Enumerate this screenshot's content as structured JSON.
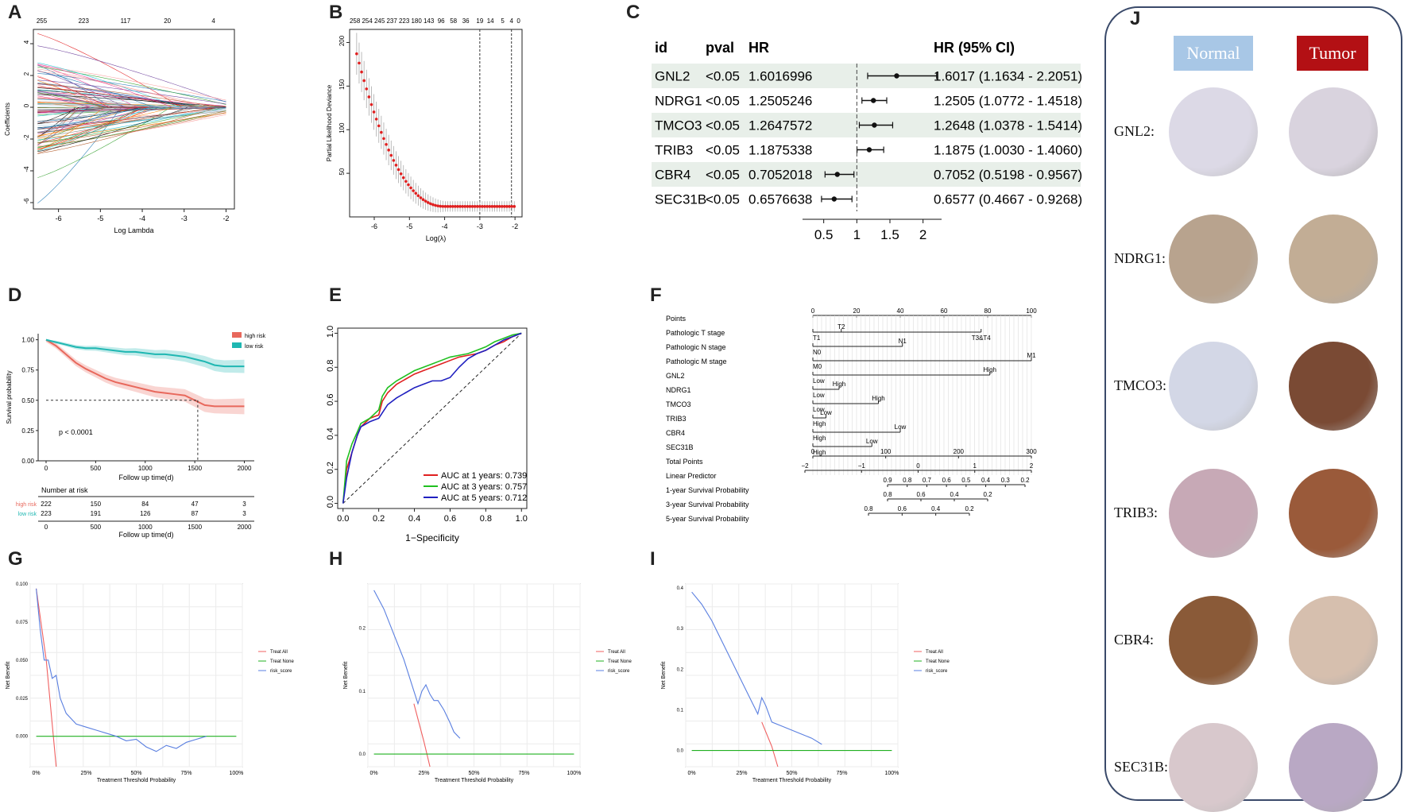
{
  "panels": {
    "A": "A",
    "B": "B",
    "C": "C",
    "D": "D",
    "E": "E",
    "F": "F",
    "G": "G",
    "H": "H",
    "I": "I",
    "J": "J"
  },
  "chart_data": [
    {
      "id": "A",
      "type": "line",
      "title": "",
      "xlabel": "Log Lambda",
      "ylabel": "Coefficients",
      "xticks": [
        "-6",
        "-5",
        "-4",
        "-3",
        "-2"
      ],
      "yticks": [
        "-6",
        "-4",
        "-2",
        "0",
        "2",
        "4"
      ],
      "top_ticks": [
        "255",
        "223",
        "117",
        "20",
        "4"
      ],
      "xlim": [
        -6.6,
        -1.8
      ],
      "ylim": [
        -6.4,
        4.9
      ]
    },
    {
      "id": "B",
      "type": "scatter",
      "title": "",
      "xlabel": "Log(λ)",
      "ylabel": "Partial Likelihood Deviance",
      "xticks": [
        "-6",
        "-5",
        "-4",
        "-3",
        "-2"
      ],
      "yticks": [
        "50",
        "100",
        "150",
        "200"
      ],
      "top_ticks": [
        "258",
        "254",
        "245",
        "237",
        "223",
        "180",
        "143",
        "96",
        "58",
        "36",
        "19",
        "14",
        "5",
        "4",
        "0"
      ],
      "xlim": [
        -6.7,
        -1.8
      ],
      "ylim": [
        0,
        215
      ],
      "vlines": [
        -3.0,
        -2.1
      ]
    },
    {
      "id": "C",
      "type": "table",
      "title": "",
      "columns": [
        "id",
        "pval",
        "HR",
        "HR (95% CI)"
      ],
      "rows": [
        {
          "id": "GNL2",
          "pval": "<0.05",
          "hr": "1.6016996",
          "ci": "1.6017 (1.1634 - 2.2051)",
          "est": 1.6017,
          "lo": 1.1634,
          "hi": 2.2051
        },
        {
          "id": "NDRG1",
          "pval": "<0.05",
          "hr": "1.2505246",
          "ci": "1.2505 (1.0772 - 1.4518)",
          "est": 1.2505,
          "lo": 1.0772,
          "hi": 1.4518
        },
        {
          "id": "TMCO3",
          "pval": "<0.05",
          "hr": "1.2647572",
          "ci": "1.2648 (1.0378 - 1.5414)",
          "est": 1.2648,
          "lo": 1.0378,
          "hi": 1.5414
        },
        {
          "id": "TRIB3",
          "pval": "<0.05",
          "hr": "1.1875338",
          "ci": "1.1875 (1.0030 - 1.4060)",
          "est": 1.1875,
          "lo": 1.003,
          "hi": 1.406
        },
        {
          "id": "CBR4",
          "pval": "<0.05",
          "hr": "0.7052018",
          "ci": "0.7052 (0.5198 - 0.9567)",
          "est": 0.7052,
          "lo": 0.5198,
          "hi": 0.9567
        },
        {
          "id": "SEC31B",
          "pval": "<0.05",
          "hr": "0.6576638",
          "ci": "0.6577 (0.4667 - 0.9268)",
          "est": 0.6577,
          "lo": 0.4667,
          "hi": 0.9268
        }
      ],
      "xticks": [
        "0.5",
        "1",
        "1.5",
        "2"
      ],
      "xlim": [
        0.3,
        2.1
      ]
    },
    {
      "id": "D",
      "type": "line",
      "title": "",
      "xlabel": "Follow up time(d)",
      "ylabel": "Survival probability",
      "xticks": [
        "0",
        "500",
        "1000",
        "1500",
        "2000"
      ],
      "yticks": [
        "0.00",
        "0.25",
        "0.50",
        "0.75",
        "1.00"
      ],
      "xlim": [
        -80,
        2100
      ],
      "ylim": [
        0,
        1.05
      ],
      "pvalue": "p < 0.0001",
      "legend": [
        "high risk",
        "low risk"
      ],
      "series": [
        {
          "name": "high risk",
          "color": "#e8685c",
          "x": [
            0,
            100,
            200,
            300,
            400,
            500,
            600,
            700,
            800,
            900,
            1000,
            1100,
            1200,
            1300,
            1400,
            1500,
            1600,
            1700,
            1800,
            1900,
            2000
          ],
          "y": [
            1.0,
            0.95,
            0.88,
            0.81,
            0.76,
            0.72,
            0.68,
            0.65,
            0.63,
            0.61,
            0.59,
            0.57,
            0.56,
            0.55,
            0.54,
            0.5,
            0.46,
            0.45,
            0.45,
            0.45,
            0.45
          ]
        },
        {
          "name": "low risk",
          "color": "#1fb7b2",
          "x": [
            0,
            100,
            200,
            300,
            400,
            500,
            600,
            700,
            800,
            900,
            1000,
            1100,
            1200,
            1300,
            1400,
            1500,
            1600,
            1700,
            1800,
            1900,
            2000
          ],
          "y": [
            1.0,
            0.98,
            0.96,
            0.94,
            0.93,
            0.93,
            0.92,
            0.91,
            0.9,
            0.9,
            0.89,
            0.88,
            0.88,
            0.87,
            0.86,
            0.84,
            0.82,
            0.79,
            0.78,
            0.78,
            0.78
          ]
        }
      ],
      "risk_table": {
        "title": "Number at risk",
        "rows": [
          {
            "name": "high risk",
            "color": "#e8685c",
            "values": [
              "222",
              "150",
              "84",
              "47",
              "3"
            ]
          },
          {
            "name": "low risk",
            "color": "#1fb7b2",
            "values": [
              "223",
              "191",
              "126",
              "87",
              "3"
            ]
          }
        ],
        "xticks": [
          "0",
          "500",
          "1000",
          "1500",
          "2000"
        ],
        "xlabel": "Follow up time(d)"
      }
    },
    {
      "id": "E",
      "type": "line",
      "title": "",
      "xlabel": "1−Specificity",
      "ylabel": "Sensitivity",
      "xticks": [
        "0.0",
        "0.2",
        "0.4",
        "0.6",
        "0.8",
        "1.0"
      ],
      "yticks": [
        "0.0",
        "0.2",
        "0.4",
        "0.6",
        "0.8",
        "1.0"
      ],
      "xlim": [
        -0.03,
        1.03
      ],
      "ylim": [
        -0.03,
        1.03
      ],
      "legend": [
        "AUC at 1 years: 0.739",
        "AUC at 3 years: 0.757",
        "AUC at 5 years: 0.712"
      ],
      "series": [
        {
          "name": "AUC at 1 years: 0.739",
          "color": "#e02020",
          "x": [
            0,
            0.02,
            0.05,
            0.08,
            0.1,
            0.15,
            0.2,
            0.22,
            0.25,
            0.3,
            0.35,
            0.4,
            0.45,
            0.5,
            0.55,
            0.6,
            0.65,
            0.7,
            0.75,
            0.8,
            0.85,
            0.9,
            0.95,
            1.0
          ],
          "y": [
            0,
            0.2,
            0.3,
            0.4,
            0.45,
            0.5,
            0.52,
            0.6,
            0.65,
            0.7,
            0.73,
            0.76,
            0.78,
            0.8,
            0.82,
            0.84,
            0.86,
            0.87,
            0.88,
            0.9,
            0.93,
            0.95,
            0.98,
            1.0
          ]
        },
        {
          "name": "AUC at 3 years: 0.757",
          "color": "#20c020",
          "x": [
            0,
            0.02,
            0.05,
            0.08,
            0.1,
            0.15,
            0.2,
            0.22,
            0.25,
            0.3,
            0.35,
            0.4,
            0.45,
            0.5,
            0.55,
            0.6,
            0.65,
            0.7,
            0.75,
            0.8,
            0.85,
            0.9,
            0.95,
            1.0
          ],
          "y": [
            0,
            0.25,
            0.35,
            0.42,
            0.47,
            0.5,
            0.55,
            0.63,
            0.68,
            0.72,
            0.75,
            0.78,
            0.8,
            0.82,
            0.84,
            0.86,
            0.87,
            0.88,
            0.9,
            0.92,
            0.95,
            0.97,
            0.99,
            1.0
          ]
        },
        {
          "name": "AUC at 5 years: 0.712",
          "color": "#2020c0",
          "x": [
            0,
            0.02,
            0.05,
            0.08,
            0.1,
            0.15,
            0.2,
            0.25,
            0.3,
            0.35,
            0.4,
            0.45,
            0.5,
            0.55,
            0.6,
            0.65,
            0.7,
            0.75,
            0.8,
            0.85,
            0.9,
            0.95,
            1.0
          ],
          "y": [
            0,
            0.15,
            0.3,
            0.4,
            0.45,
            0.48,
            0.5,
            0.58,
            0.62,
            0.65,
            0.68,
            0.7,
            0.72,
            0.72,
            0.74,
            0.8,
            0.85,
            0.88,
            0.9,
            0.93,
            0.96,
            0.98,
            1.0
          ]
        }
      ]
    },
    {
      "id": "F",
      "type": "table",
      "title": "Nomogram",
      "rows": [
        {
          "label": "Points",
          "kind": "axis",
          "ticks": [
            "0",
            "20",
            "40",
            "60",
            "80",
            "100"
          ]
        },
        {
          "label": "Pathologic T stage",
          "kind": "var",
          "marks": [
            "T1",
            "T2",
            "T3&T4"
          ]
        },
        {
          "label": "Pathologic N stage",
          "kind": "var",
          "marks": [
            "N0",
            "N1"
          ]
        },
        {
          "label": "Pathologic M stage",
          "kind": "var",
          "marks": [
            "M0",
            "M1"
          ]
        },
        {
          "label": "GNL2",
          "kind": "var",
          "marks": [
            "Low",
            "High"
          ]
        },
        {
          "label": "NDRG1",
          "kind": "var",
          "marks": [
            "Low",
            "High"
          ]
        },
        {
          "label": "TMCO3",
          "kind": "var",
          "marks": [
            "Low",
            "High"
          ]
        },
        {
          "label": "TRIB3",
          "kind": "var",
          "marks": [
            "High",
            "Low"
          ]
        },
        {
          "label": "CBR4",
          "kind": "var",
          "marks": [
            "High",
            "Low"
          ]
        },
        {
          "label": "SEC31B",
          "kind": "var",
          "marks": [
            "High",
            "Low"
          ]
        },
        {
          "label": "Total Points",
          "kind": "axis",
          "ticks": [
            "0",
            "100",
            "200",
            "300"
          ]
        },
        {
          "label": "Linear Predictor",
          "kind": "axis",
          "ticks": [
            "−2",
            "−1",
            "0",
            "1",
            "2"
          ]
        },
        {
          "label": "1-year Survival Probability",
          "kind": "axis",
          "ticks": [
            "0.9",
            "0.8",
            "0.7",
            "0.6",
            "0.5",
            "0.4",
            "0.3",
            "0.2"
          ]
        },
        {
          "label": "3-year Survival Probability",
          "kind": "axis",
          "ticks": [
            "0.8",
            "0.6",
            "0.4",
            "0.2"
          ]
        },
        {
          "label": "5-year Survival Probability",
          "kind": "axis",
          "ticks": [
            "0.8",
            "0.6",
            "0.4",
            "0.2"
          ]
        }
      ]
    },
    {
      "id": "G",
      "type": "line",
      "title": "",
      "xlabel": "Treatment Threshold Probability",
      "ylabel": "Net Benefit",
      "xticks": [
        "0%",
        "25%",
        "50%",
        "75%",
        "100%"
      ],
      "yticks": [
        "0.000",
        "0.025",
        "0.050",
        "0.075",
        "0.100"
      ],
      "xlim": [
        -0.03,
        1.03
      ],
      "ylim": [
        -0.02,
        0.1
      ],
      "legend": [
        "Treat All",
        "Treat None",
        "risk_score"
      ],
      "series": [
        {
          "name": "Treat All",
          "color": "#f06060",
          "x": [
            0,
            0.05,
            0.1
          ],
          "y": [
            0.097,
            0.05,
            -0.02
          ]
        },
        {
          "name": "Treat None",
          "color": "#20b020",
          "x": [
            0,
            1
          ],
          "y": [
            0,
            0
          ]
        },
        {
          "name": "risk_score",
          "color": "#5a7fe0",
          "x": [
            0,
            0.02,
            0.04,
            0.06,
            0.08,
            0.1,
            0.12,
            0.15,
            0.2,
            0.25,
            0.3,
            0.35,
            0.4,
            0.45,
            0.5,
            0.55,
            0.6,
            0.65,
            0.7,
            0.75,
            0.8,
            0.85
          ],
          "y": [
            0.097,
            0.07,
            0.05,
            0.05,
            0.038,
            0.04,
            0.025,
            0.015,
            0.008,
            0.006,
            0.004,
            0.002,
            0,
            -0.003,
            -0.002,
            -0.007,
            -0.01,
            -0.006,
            -0.008,
            -0.004,
            -0.002,
            0
          ]
        }
      ]
    },
    {
      "id": "H",
      "type": "line",
      "title": "",
      "xlabel": "Treatment Threshold Probability",
      "ylabel": "Net Benefit",
      "xticks": [
        "0%",
        "25%",
        "50%",
        "75%",
        "100%"
      ],
      "yticks": [
        "0.0",
        "0.1",
        "0.2"
      ],
      "xlim": [
        -0.03,
        1.03
      ],
      "ylim": [
        -0.02,
        0.27
      ],
      "legend": [
        "Treat All",
        "Treat None",
        "risk_score"
      ],
      "series": [
        {
          "name": "Treat All",
          "color": "#f06060",
          "x": [
            0.2,
            0.25,
            0.28
          ],
          "y": [
            0.08,
            0.02,
            -0.02
          ]
        },
        {
          "name": "Treat None",
          "color": "#20b020",
          "x": [
            0,
            1
          ],
          "y": [
            0,
            0
          ]
        },
        {
          "name": "risk_score",
          "color": "#5a7fe0",
          "x": [
            0,
            0.05,
            0.1,
            0.15,
            0.2,
            0.22,
            0.24,
            0.26,
            0.28,
            0.3,
            0.32,
            0.35,
            0.38,
            0.4,
            0.43
          ],
          "y": [
            0.26,
            0.23,
            0.19,
            0.15,
            0.1,
            0.08,
            0.1,
            0.11,
            0.095,
            0.085,
            0.085,
            0.07,
            0.05,
            0.035,
            0.025
          ]
        }
      ]
    },
    {
      "id": "I",
      "type": "line",
      "title": "",
      "xlabel": "Treatment Threshold Probability",
      "ylabel": "Net Benefit",
      "xticks": [
        "0%",
        "25%",
        "50%",
        "75%",
        "100%"
      ],
      "yticks": [
        "0.0",
        "0.1",
        "0.2",
        "0.3",
        "0.4"
      ],
      "xlim": [
        -0.03,
        1.03
      ],
      "ylim": [
        -0.04,
        0.41
      ],
      "legend": [
        "Treat All",
        "Treat None",
        "risk_score"
      ],
      "series": [
        {
          "name": "Treat All",
          "color": "#f06060",
          "x": [
            0.35,
            0.4,
            0.43
          ],
          "y": [
            0.07,
            0.01,
            -0.04
          ]
        },
        {
          "name": "Treat None",
          "color": "#20b020",
          "x": [
            0,
            1
          ],
          "y": [
            0,
            0
          ]
        },
        {
          "name": "risk_score",
          "color": "#5a7fe0",
          "x": [
            0,
            0.05,
            0.1,
            0.15,
            0.2,
            0.25,
            0.3,
            0.33,
            0.35,
            0.37,
            0.4,
            0.45,
            0.5,
            0.55,
            0.6,
            0.65
          ],
          "y": [
            0.39,
            0.36,
            0.32,
            0.27,
            0.22,
            0.17,
            0.12,
            0.09,
            0.13,
            0.11,
            0.07,
            0.06,
            0.05,
            0.04,
            0.03,
            0.015
          ]
        }
      ]
    }
  ],
  "ihc": {
    "normal_label": "Normal",
    "tumor_label": "Tumor",
    "normal_color": "#a8c7e6",
    "tumor_color": "#b31014",
    "genes": [
      {
        "name": "GNL2:",
        "normal": "#dcd9e6",
        "tumor": "#d9d3de"
      },
      {
        "name": "NDRG1:",
        "normal": "#b8a38e",
        "tumor": "#c2ad95"
      },
      {
        "name": "TMCO3:",
        "normal": "#d3d7e6",
        "tumor": "#7a4a34"
      },
      {
        "name": "TRIB3:",
        "normal": "#c7a9b6",
        "tumor": "#9a5a3a"
      },
      {
        "name": "CBR4:",
        "normal": "#8a5a38",
        "tumor": "#d6bfae"
      },
      {
        "name": "SEC31B:",
        "normal": "#d8c8cc",
        "tumor": "#b9a8c4"
      }
    ]
  }
}
